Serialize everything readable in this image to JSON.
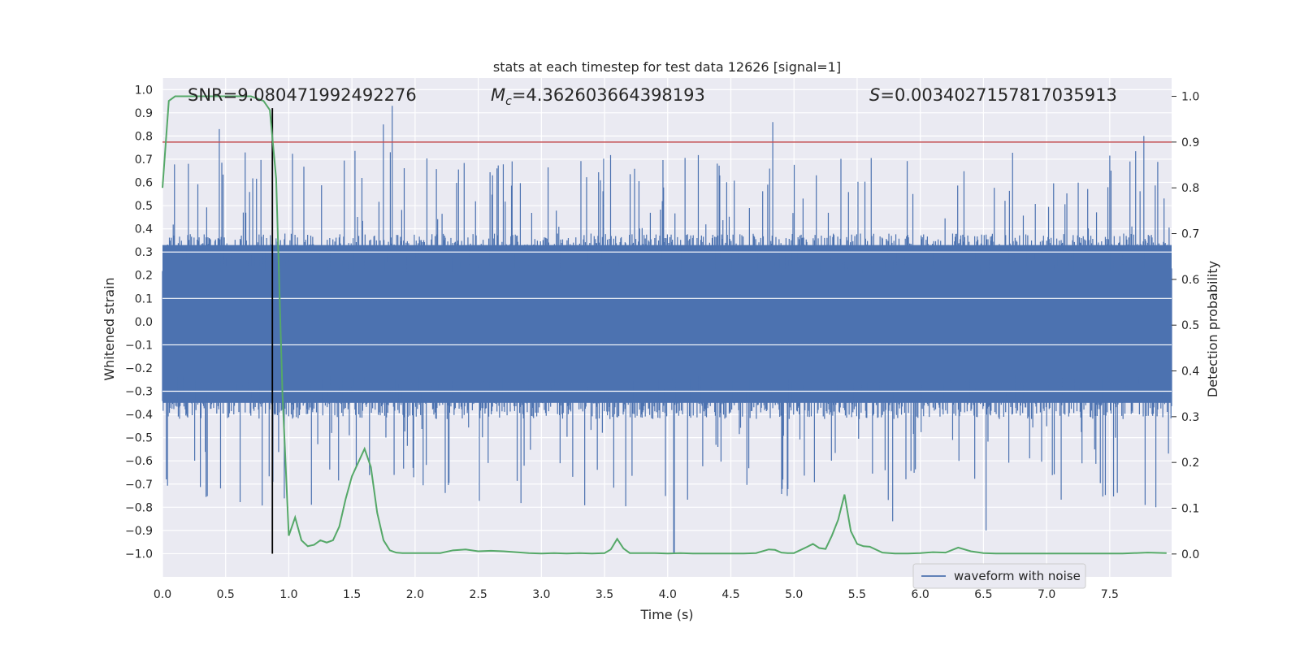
{
  "chart_data": {
    "type": "line",
    "title": "stats at each timestep for test data 12626 [signal=1]",
    "xlabel": "Time (s)",
    "ylabel": "Whitened strain",
    "y2label": "Detection probability",
    "xlim": [
      0.0,
      7.99
    ],
    "ylim": [
      -1.1,
      1.05
    ],
    "y2lim": [
      -0.05,
      1.04
    ],
    "xticks": [
      "0.0",
      "0.5",
      "1.0",
      "1.5",
      "2.0",
      "2.5",
      "3.0",
      "3.5",
      "4.0",
      "4.5",
      "5.0",
      "5.5",
      "6.0",
      "6.5",
      "7.0",
      "7.5"
    ],
    "yticks": [
      "1.0",
      "0.9",
      "0.8",
      "0.7",
      "0.6",
      "0.5",
      "0.4",
      "0.3",
      "0.2",
      "0.1",
      "0.0",
      "-0.1",
      "-0.2",
      "-0.3",
      "-0.4",
      "-0.5",
      "-0.6",
      "-0.7",
      "-0.8",
      "-0.9",
      "-1.0"
    ],
    "y2ticks": [
      "1.0",
      "0.9",
      "0.8",
      "0.7",
      "0.6",
      "0.5",
      "0.4",
      "0.3",
      "0.2",
      "0.1",
      "0.0"
    ],
    "grid": true,
    "legend_position": "lower-right",
    "annotations": {
      "snr": "SNR=9.080471992492276",
      "mc_prefix": "M",
      "mc_sub": "c",
      "mc_value": "=4.362603664398193",
      "s_prefix": "S",
      "s_value": "=0.0034027157817035913"
    },
    "threshold_line": {
      "y2": 0.9,
      "color": "#c44e52"
    },
    "marker_line": {
      "x": 0.87,
      "y_from": -1.0,
      "y_to": 0.92,
      "color": "#000000"
    },
    "series": [
      {
        "name": "waveform with noise",
        "color": "#4c72b0",
        "note_samples": 1600,
        "envelope_upper_typical": 0.38,
        "envelope_lower_typical": -0.42,
        "peaks": [
          [
            0.45,
            0.83
          ],
          [
            1.82,
            0.93
          ],
          [
            1.75,
            0.85
          ],
          [
            4.83,
            0.86
          ],
          [
            7.77,
            0.8
          ]
        ],
        "troughs": [
          [
            0.03,
            -0.68
          ],
          [
            4.05,
            -1.0
          ],
          [
            6.52,
            -0.9
          ],
          [
            7.78,
            -0.79
          ],
          [
            5.78,
            -0.86
          ]
        ]
      },
      {
        "color": "#55a868",
        "axis": "right",
        "x": [
          0.0,
          0.05,
          0.1,
          0.15,
          0.2,
          0.3,
          0.4,
          0.5,
          0.6,
          0.7,
          0.8,
          0.85,
          0.9,
          0.95,
          1.0,
          1.05,
          1.1,
          1.15,
          1.2,
          1.25,
          1.3,
          1.35,
          1.4,
          1.45,
          1.5,
          1.55,
          1.6,
          1.65,
          1.7,
          1.75,
          1.8,
          1.85,
          1.9,
          2.0,
          2.1,
          2.2,
          2.3,
          2.4,
          2.5,
          2.6,
          2.7,
          2.8,
          2.9,
          3.0,
          3.1,
          3.2,
          3.3,
          3.4,
          3.5,
          3.55,
          3.6,
          3.65,
          3.7,
          3.8,
          3.9,
          4.0,
          4.1,
          4.2,
          4.3,
          4.4,
          4.5,
          4.6,
          4.7,
          4.8,
          4.85,
          4.9,
          4.95,
          5.0,
          5.1,
          5.15,
          5.2,
          5.25,
          5.3,
          5.35,
          5.4,
          5.45,
          5.5,
          5.55,
          5.6,
          5.7,
          5.8,
          5.9,
          6.0,
          6.1,
          6.2,
          6.3,
          6.4,
          6.5,
          6.6,
          6.8,
          7.0,
          7.2,
          7.4,
          7.6,
          7.8,
          7.95
        ],
        "values": [
          0.8,
          0.99,
          1.0,
          1.0,
          1.0,
          1.0,
          1.0,
          1.0,
          1.0,
          1.0,
          0.99,
          0.97,
          0.82,
          0.35,
          0.04,
          0.08,
          0.03,
          0.017,
          0.02,
          0.03,
          0.025,
          0.03,
          0.06,
          0.12,
          0.17,
          0.2,
          0.23,
          0.19,
          0.09,
          0.03,
          0.008,
          0.003,
          0.002,
          0.002,
          0.002,
          0.002,
          0.008,
          0.01,
          0.006,
          0.007,
          0.006,
          0.004,
          0.002,
          0.001,
          0.002,
          0.001,
          0.002,
          0.001,
          0.002,
          0.01,
          0.033,
          0.012,
          0.002,
          0.002,
          0.002,
          0.001,
          0.002,
          0.001,
          0.001,
          0.001,
          0.001,
          0.001,
          0.002,
          0.01,
          0.009,
          0.003,
          0.002,
          0.002,
          0.015,
          0.022,
          0.013,
          0.011,
          0.04,
          0.075,
          0.13,
          0.05,
          0.022,
          0.017,
          0.016,
          0.003,
          0.001,
          0.001,
          0.002,
          0.004,
          0.003,
          0.014,
          0.006,
          0.002,
          0.001,
          0.001,
          0.001,
          0.001,
          0.001,
          0.001,
          0.003,
          0.002
        ]
      }
    ]
  }
}
